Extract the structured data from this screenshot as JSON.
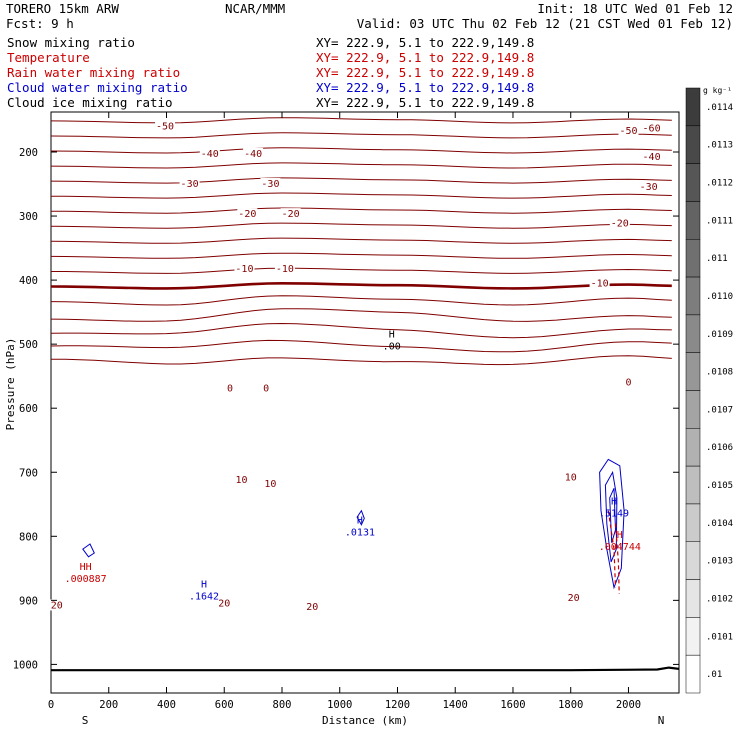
{
  "header": {
    "model": "TORERO  15km ARW",
    "org": "NCAR/MMM",
    "init": "Init: 18 UTC Wed 01 Feb 12",
    "fcst": "Fcst:    9 h",
    "valid": "Valid: 03 UTC Thu 02 Feb 12 (21 CST Wed 01 Feb 12)"
  },
  "fields": [
    {
      "name": "Snow mixing ratio",
      "xy": "XY= 222.9,  5.1 to 222.9,149.8",
      "color": "#000000"
    },
    {
      "name": "Temperature",
      "xy": "XY= 222.9,  5.1 to 222.9,149.8",
      "color": "#cc0000"
    },
    {
      "name": "Rain water mixing ratio",
      "xy": "XY= 222.9,  5.1 to 222.9,149.8",
      "color": "#cc0000"
    },
    {
      "name": "Cloud water mixing ratio",
      "xy": "XY= 222.9,  5.1 to 222.9,149.8",
      "color": "#0000cc"
    },
    {
      "name": "Cloud ice mixing ratio",
      "xy": "XY= 222.9,  5.1 to 222.9,149.8",
      "color": "#000000"
    }
  ],
  "chart_data": {
    "type": "cross-section contour",
    "xlabel": "Distance (km)",
    "ylabel": "Pressure (hPa)",
    "xlim": [
      0,
      2175
    ],
    "ylim": [
      1050,
      140
    ],
    "x_ticks": [
      "0",
      "200",
      "400",
      "600",
      "800",
      "1000",
      "1200",
      "1400",
      "1600",
      "1800",
      "2000"
    ],
    "y_ticks": [
      "200",
      "300",
      "400",
      "500",
      "600",
      "700",
      "800",
      "900",
      "1000"
    ],
    "endpoints": {
      "left": "S",
      "right": "N"
    },
    "colorbar": {
      "unit": "g kg⁻¹",
      "labels": [
        ".0114",
        ".0113",
        ".0112",
        ".0111",
        ".011",
        ".0110",
        ".0109",
        ".0108",
        ".0107",
        ".0106",
        ".0105",
        ".0104",
        ".0103",
        ".0102",
        ".0101",
        ".01"
      ]
    },
    "temperature_contour_labels": [
      {
        "x": 2080,
        "p": 163,
        "text": "-60"
      },
      {
        "x": 395,
        "p": 160,
        "text": "-50"
      },
      {
        "x": 2000,
        "p": 167,
        "text": "-50"
      },
      {
        "x": 550,
        "p": 203,
        "text": "-40"
      },
      {
        "x": 700,
        "p": 203,
        "text": "-40"
      },
      {
        "x": 2080,
        "p": 208,
        "text": "-40"
      },
      {
        "x": 480,
        "p": 250,
        "text": "-30"
      },
      {
        "x": 760,
        "p": 250,
        "text": "-30"
      },
      {
        "x": 2070,
        "p": 255,
        "text": "-30"
      },
      {
        "x": 680,
        "p": 297,
        "text": "-20"
      },
      {
        "x": 830,
        "p": 297,
        "text": "-20"
      },
      {
        "x": 1970,
        "p": 312,
        "text": "-20"
      },
      {
        "x": 670,
        "p": 383,
        "text": "-10"
      },
      {
        "x": 810,
        "p": 383,
        "text": "-10"
      },
      {
        "x": 1900,
        "p": 405,
        "text": "-10"
      },
      {
        "x": 620,
        "p": 569,
        "text": "0"
      },
      {
        "x": 745,
        "p": 569,
        "text": "0"
      },
      {
        "x": 2000,
        "p": 560,
        "text": "0"
      },
      {
        "x": 660,
        "p": 712,
        "text": "10"
      },
      {
        "x": 760,
        "p": 718,
        "text": "10"
      },
      {
        "x": 1800,
        "p": 708,
        "text": "10"
      },
      {
        "x": 1810,
        "p": 896,
        "text": "20"
      },
      {
        "x": 20,
        "p": 908,
        "text": "20"
      },
      {
        "x": 600,
        "p": 905,
        "text": "20"
      },
      {
        "x": 905,
        "p": 910,
        "text": "20"
      }
    ],
    "temperature_levels_C": [
      -60,
      -55,
      -50,
      -45,
      -40,
      -35,
      -30,
      -25,
      -20,
      -15,
      -10,
      -5,
      0,
      5,
      10,
      15,
      20,
      25
    ],
    "extrema": [
      {
        "kind": "H",
        "value": ".00",
        "x": 1180,
        "p": 490,
        "color": "#000000"
      },
      {
        "kind": "H",
        "value": ".0131",
        "x": 1070,
        "p": 780,
        "color": "#0000cc"
      },
      {
        "kind": "H",
        "value": ".1642",
        "x": 530,
        "p": 880,
        "color": "#0000cc"
      },
      {
        "kind": "HH",
        "value": ".000887",
        "x": 120,
        "p": 853,
        "color": "#cc0000"
      },
      {
        "kind": "H",
        "value": ".5149",
        "x": 1950,
        "p": 750,
        "color": "#0000cc"
      },
      {
        "kind": "H",
        "value": ".004744",
        "x": 1970,
        "p": 803,
        "color": "#cc0000"
      }
    ]
  }
}
